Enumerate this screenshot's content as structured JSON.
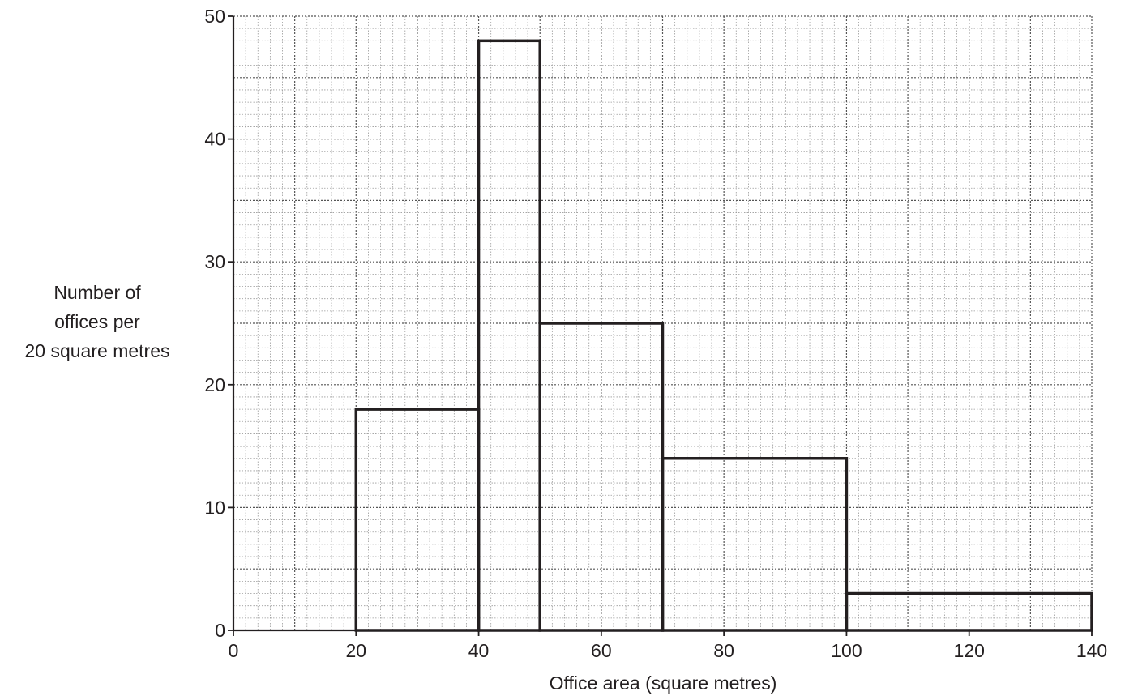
{
  "chart_data": {
    "type": "bar",
    "subtype": "histogram",
    "xlabel": "Office area (square metres)",
    "ylabel_lines": [
      "Number of",
      "offices per",
      "20 square metres"
    ],
    "xlim": [
      0,
      140
    ],
    "ylim": [
      0,
      50
    ],
    "x_ticks": [
      "0",
      "20",
      "40",
      "60",
      "80",
      "100",
      "120",
      "140"
    ],
    "y_ticks": [
      "0",
      "10",
      "20",
      "30",
      "40",
      "50"
    ],
    "grid": true,
    "bins": [
      {
        "x0": 20,
        "x1": 40,
        "value": 18
      },
      {
        "x0": 40,
        "x1": 50,
        "value": 48
      },
      {
        "x0": 50,
        "x1": 70,
        "value": 25
      },
      {
        "x0": 70,
        "x1": 100,
        "value": 14
      },
      {
        "x0": 100,
        "x1": 140,
        "value": 3
      }
    ]
  }
}
